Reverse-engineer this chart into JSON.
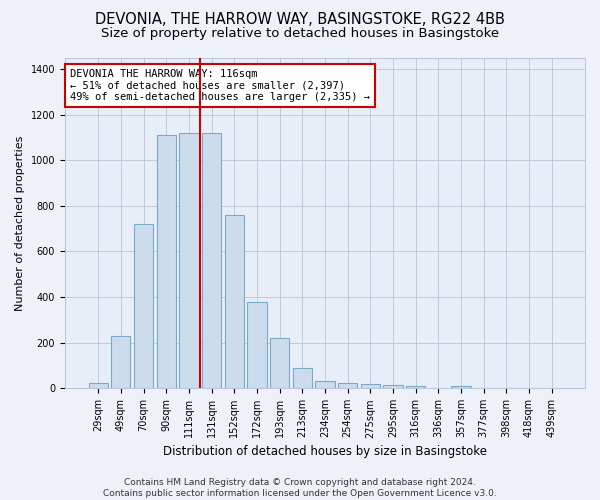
{
  "title": "DEVONIA, THE HARROW WAY, BASINGSTOKE, RG22 4BB",
  "subtitle": "Size of property relative to detached houses in Basingstoke",
  "xlabel": "Distribution of detached houses by size in Basingstoke",
  "ylabel": "Number of detached properties",
  "categories": [
    "29sqm",
    "49sqm",
    "70sqm",
    "90sqm",
    "111sqm",
    "131sqm",
    "152sqm",
    "172sqm",
    "193sqm",
    "213sqm",
    "234sqm",
    "254sqm",
    "275sqm",
    "295sqm",
    "316sqm",
    "336sqm",
    "357sqm",
    "377sqm",
    "398sqm",
    "418sqm",
    "439sqm"
  ],
  "values": [
    25,
    230,
    720,
    1110,
    1120,
    1120,
    760,
    380,
    220,
    90,
    30,
    25,
    20,
    15,
    10,
    0,
    10,
    0,
    0,
    0,
    0
  ],
  "bar_color": "#ccdcec",
  "bar_edgecolor": "#7aaac8",
  "vline_x": 4.5,
  "vline_color": "#cc0000",
  "annotation_text": "DEVONIA THE HARROW WAY: 116sqm\n← 51% of detached houses are smaller (2,397)\n49% of semi-detached houses are larger (2,335) →",
  "annotation_box_color": "#ffffff",
  "annotation_box_edgecolor": "#cc0000",
  "ylim": [
    0,
    1450
  ],
  "yticks": [
    0,
    200,
    400,
    600,
    800,
    1000,
    1200,
    1400
  ],
  "footer": "Contains HM Land Registry data © Crown copyright and database right 2024.\nContains public sector information licensed under the Open Government Licence v3.0.",
  "bg_color": "#eef2f8",
  "plot_bg_color": "#e8eef8",
  "grid_color": "#b8c4d8",
  "title_fontsize": 10.5,
  "subtitle_fontsize": 9.5,
  "xlabel_fontsize": 8.5,
  "ylabel_fontsize": 8,
  "tick_fontsize": 7,
  "footer_fontsize": 6.5,
  "annotation_fontsize": 7.5
}
